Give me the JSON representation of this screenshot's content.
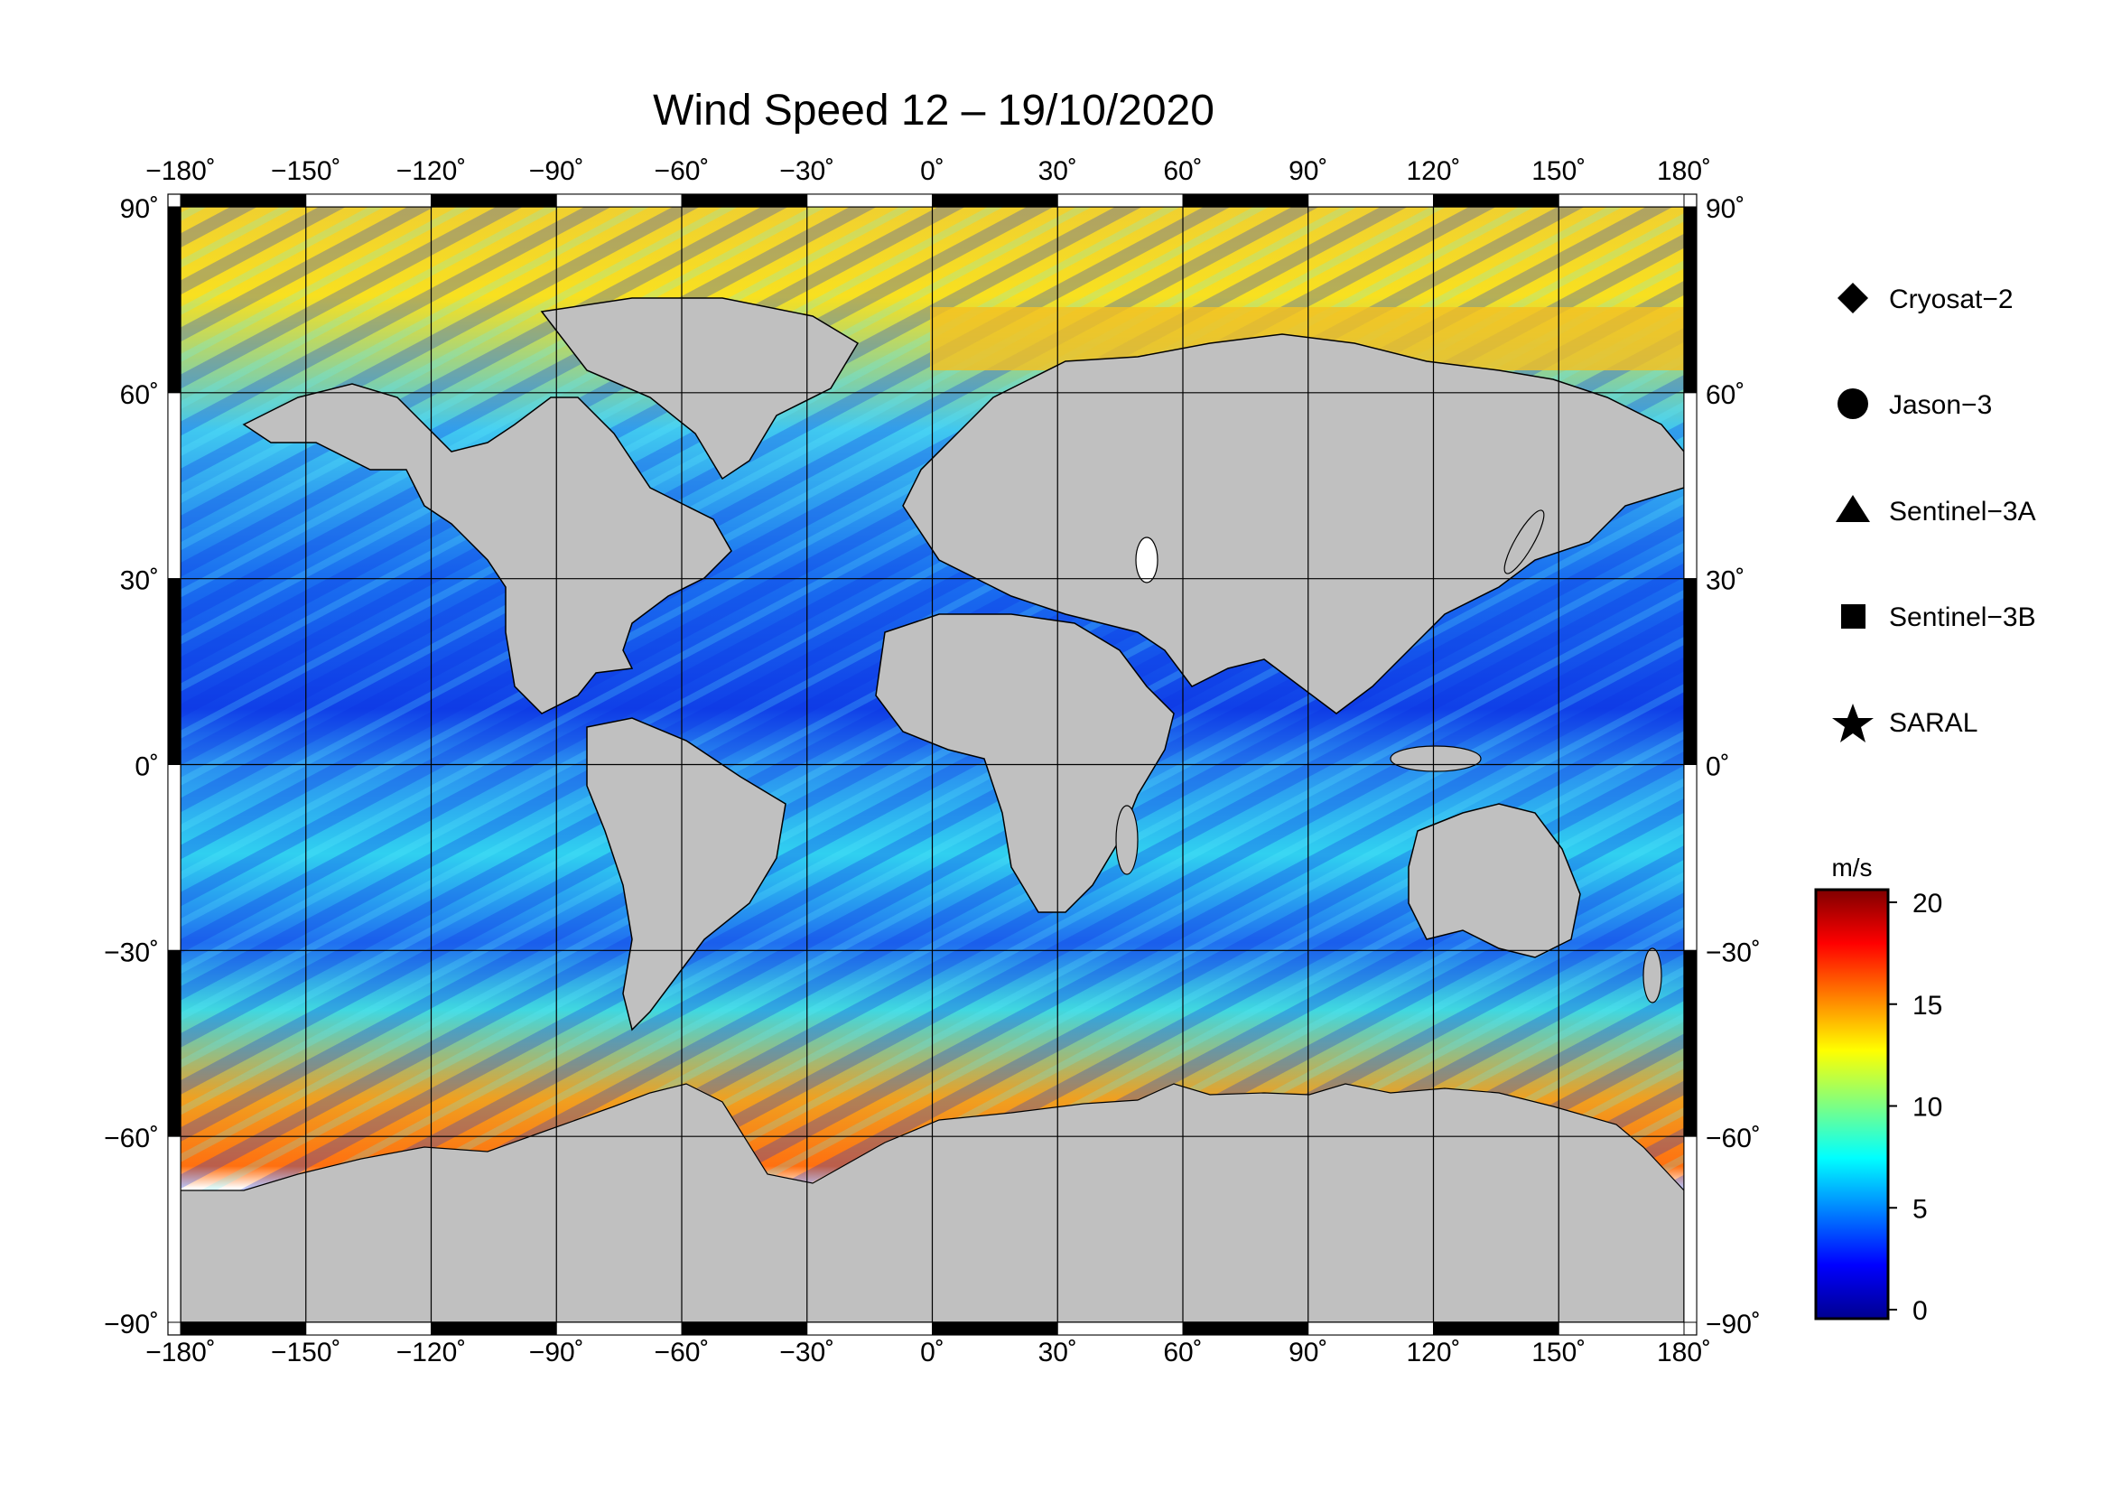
{
  "title": "Wind Speed 12 – 19/10/2020",
  "map": {
    "lon_ticks": [
      "−180˚",
      "−150˚",
      "−120˚",
      "−90˚",
      "−60˚",
      "−30˚",
      "0˚",
      "30˚",
      "60˚",
      "90˚",
      "120˚",
      "150˚",
      "180˚"
    ],
    "lat_ticks": [
      "90˚",
      "60˚",
      "30˚",
      "0˚",
      "−30˚",
      "−60˚",
      "−90˚"
    ],
    "lon_range": [
      -180,
      180
    ],
    "lat_range": [
      -90,
      90
    ],
    "grid_step_deg": 30,
    "land_color": "#c0c0c0",
    "ice_color": "#ffffff",
    "gridline_color": "#000000"
  },
  "legend": {
    "items": [
      {
        "label": "Cryosat−2",
        "marker": "diamond"
      },
      {
        "label": "Jason−3",
        "marker": "circle"
      },
      {
        "label": "Sentinel−3A",
        "marker": "triangle"
      },
      {
        "label": "Sentinel−3B",
        "marker": "square"
      },
      {
        "label": "SARAL",
        "marker": "star"
      }
    ]
  },
  "colorbar": {
    "unit": "m/s",
    "ticks": [
      "20",
      "15",
      "10",
      "5",
      "0"
    ],
    "range": [
      0,
      20
    ],
    "colors": [
      "#00008f",
      "#0000ff",
      "#0080ff",
      "#00ffff",
      "#80ff80",
      "#ffff00",
      "#ff8000",
      "#ff0000",
      "#800000"
    ]
  }
}
